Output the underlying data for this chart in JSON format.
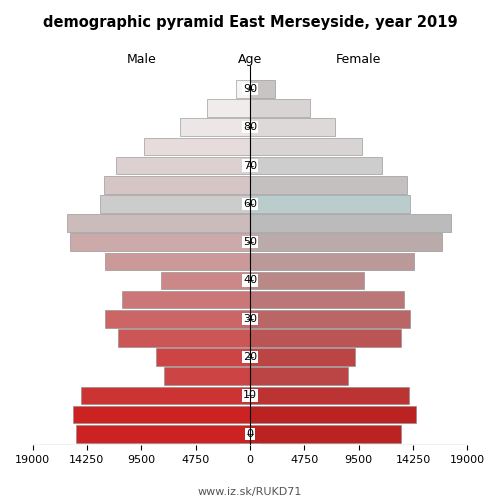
{
  "title": "demographic pyramid East Merseyside, year 2019",
  "xlabel_left": "Male",
  "xlabel_right": "Female",
  "xlabel_center": "Age",
  "footer": "www.iz.sk/RUKD71",
  "age_groups": [
    0,
    5,
    10,
    15,
    20,
    25,
    30,
    35,
    40,
    45,
    50,
    55,
    60,
    65,
    70,
    75,
    80,
    85,
    90
  ],
  "male": [
    15200,
    15500,
    14800,
    7500,
    8200,
    11500,
    12700,
    11200,
    7800,
    12700,
    15700,
    16000,
    13100,
    12800,
    11700,
    9300,
    6100,
    3800,
    1200
  ],
  "female": [
    13200,
    14500,
    13900,
    8600,
    9200,
    13200,
    14000,
    13500,
    10000,
    14300,
    16800,
    17600,
    14000,
    13700,
    11500,
    9800,
    7400,
    5200,
    2200
  ],
  "male_colors": [
    "#cc2222",
    "#cc2222",
    "#cc3333",
    "#cc4444",
    "#cc4444",
    "#cc5555",
    "#cc6666",
    "#cc7777",
    "#cc8888",
    "#cc9999",
    "#ccaaaa",
    "#ccbbbb",
    "#cccccc",
    "#d5c5c5",
    "#ddd0d0",
    "#e6dcdc",
    "#ece6e6",
    "#f0ecec",
    "#f5f5f5"
  ],
  "female_colors": [
    "#bb2222",
    "#bb2222",
    "#bb3333",
    "#bb4444",
    "#bb4444",
    "#bb5555",
    "#bb6666",
    "#bb7777",
    "#bb8888",
    "#bb9999",
    "#bbaaaa",
    "#bbbbbb",
    "#bbcccc",
    "#c5c0c0",
    "#cecdcd",
    "#d8d4d4",
    "#ddd9d9",
    "#d8d4d4",
    "#c8c4c4"
  ],
  "xlim": 19000,
  "bar_height": 4.6,
  "background_color": "#ffffff",
  "ytick_positions": [
    0,
    10,
    20,
    30,
    40,
    50,
    60,
    70,
    80,
    90
  ],
  "xtick_vals": [
    -19000,
    -14250,
    -9500,
    -4750,
    0,
    4750,
    9500,
    14250,
    19000
  ],
  "xtick_labels": [
    "19000",
    "14250",
    "9500",
    "4750",
    "0",
    "4750",
    "9500",
    "14250",
    "19000"
  ]
}
